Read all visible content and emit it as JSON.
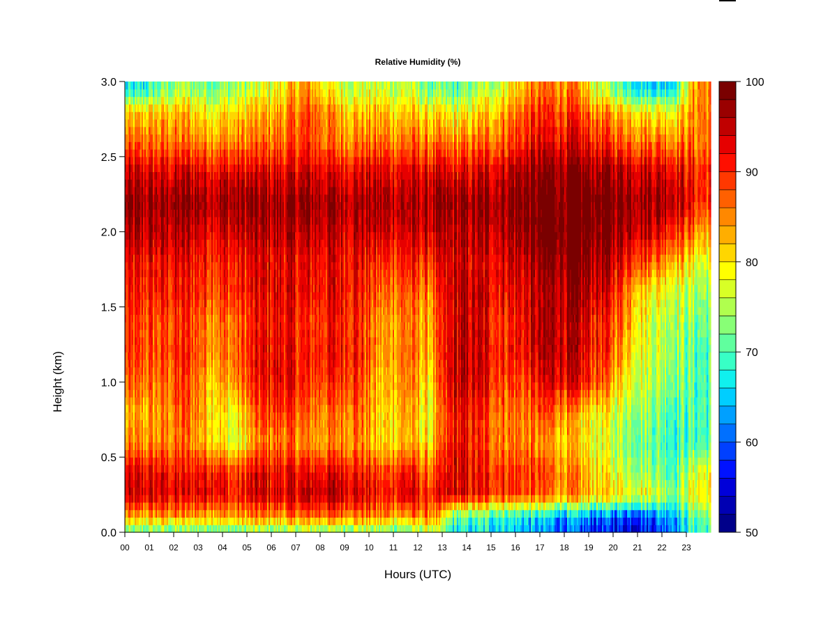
{
  "chart_data": {
    "type": "heatmap",
    "title": "Relative Humidity (%)",
    "xlabel": "Hours (UTC)",
    "ylabel": "Height (km)",
    "x_ticks": [
      "00",
      "01",
      "02",
      "03",
      "04",
      "05",
      "06",
      "07",
      "08",
      "09",
      "10",
      "11",
      "12",
      "13",
      "14",
      "15",
      "16",
      "17",
      "18",
      "19",
      "20",
      "21",
      "22",
      "23"
    ],
    "y_ticks": [
      "0.0",
      "0.5",
      "1.0",
      "1.5",
      "2.0",
      "2.5",
      "3.0"
    ],
    "xlim": [
      0,
      24
    ],
    "ylim": [
      0,
      3.0
    ],
    "colorbar": {
      "range": [
        50,
        100
      ],
      "step": 2,
      "tick_labels": [
        "50",
        "60",
        "70",
        "80",
        "90",
        "100"
      ],
      "colors": [
        "#00008a",
        "#0000b3",
        "#0000d9",
        "#0012ff",
        "#0040ff",
        "#0070ff",
        "#00a0ff",
        "#00ceff",
        "#10f0ee",
        "#38ffc6",
        "#60ff9e",
        "#88ff76",
        "#b0ff4e",
        "#d8ff26",
        "#ffff00",
        "#ffd600",
        "#ffae00",
        "#ff8800",
        "#ff6000",
        "#ff3800",
        "#ff0f00",
        "#e60000",
        "#c00000",
        "#9a0000",
        "#7a0000"
      ]
    },
    "levels_km": [
      0.03,
      0.1,
      0.25,
      0.4,
      0.6,
      0.8,
      1.0,
      1.2,
      1.4,
      1.6,
      1.8,
      2.0,
      2.2,
      2.4,
      2.6,
      2.8,
      2.95
    ],
    "rows": [
      {
        "h": 0,
        "v": [
          72,
          74,
          73,
          74,
          73,
          75,
          74,
          76,
          75,
          76,
          74,
          73,
          78,
          67,
          67,
          67,
          64,
          62,
          60,
          58,
          57,
          58,
          64,
          70
        ]
      },
      {
        "h": 1,
        "v": [
          82,
          84,
          83,
          84,
          83,
          85,
          84,
          86,
          86,
          86,
          84,
          83,
          86,
          70,
          70,
          69,
          66,
          64,
          62,
          60,
          59,
          60,
          65,
          72
        ]
      },
      {
        "h": 2,
        "v": [
          93,
          94,
          92,
          95,
          90,
          94,
          93,
          95,
          96,
          95,
          90,
          94,
          90,
          93,
          91,
          90,
          88,
          86,
          84,
          82,
          80,
          79,
          74,
          80
        ]
      },
      {
        "h": 3,
        "v": [
          92,
          92,
          91,
          93,
          89,
          93,
          92,
          92,
          93,
          92,
          88,
          92,
          86,
          94,
          91,
          90,
          89,
          87,
          84,
          80,
          76,
          74,
          71,
          78
        ]
      },
      {
        "h": 4,
        "v": [
          84,
          85,
          86,
          83,
          76,
          85,
          86,
          84,
          84,
          86,
          80,
          83,
          80,
          92,
          89,
          86,
          85,
          83,
          80,
          77,
          74,
          72,
          70,
          70
        ]
      },
      {
        "h": 5,
        "v": [
          82,
          84,
          88,
          82,
          78,
          88,
          90,
          86,
          86,
          88,
          80,
          84,
          78,
          92,
          90,
          87,
          86,
          88,
          82,
          79,
          76,
          74,
          71,
          70
        ]
      },
      {
        "h": 6,
        "v": [
          86,
          86,
          89,
          83,
          84,
          91,
          93,
          89,
          90,
          90,
          81,
          86,
          80,
          95,
          93,
          89,
          89,
          94,
          92,
          88,
          80,
          76,
          74,
          70
        ]
      },
      {
        "h": 7,
        "v": [
          88,
          88,
          90,
          86,
          86,
          92,
          93,
          90,
          92,
          92,
          83,
          87,
          82,
          95,
          94,
          91,
          92,
          96,
          94,
          90,
          84,
          77,
          75,
          70
        ]
      },
      {
        "h": 8,
        "v": [
          88,
          88,
          89,
          86,
          86,
          91,
          92,
          89,
          91,
          91,
          83,
          86,
          83,
          94,
          93,
          90,
          93,
          96,
          94,
          91,
          86,
          77,
          76,
          72
        ]
      },
      {
        "h": 9,
        "v": [
          90,
          91,
          91,
          90,
          89,
          92,
          93,
          91,
          93,
          92,
          86,
          88,
          85,
          95,
          94,
          93,
          93,
          96,
          96,
          94,
          88,
          80,
          78,
          74
        ]
      },
      {
        "h": 10,
        "v": [
          91,
          92,
          92,
          91,
          90,
          93,
          93,
          92,
          93,
          93,
          89,
          91,
          89,
          94,
          93,
          94,
          95,
          98,
          98,
          96,
          93,
          88,
          84,
          78
        ]
      },
      {
        "h": 11,
        "v": [
          95,
          95,
          95,
          94,
          94,
          95,
          95,
          95,
          95,
          95,
          94,
          94,
          94,
          95,
          95,
          96,
          98,
          100,
          100,
          99,
          97,
          95,
          92,
          84
        ]
      },
      {
        "h": 12,
        "v": [
          97,
          97,
          98,
          97,
          97,
          97,
          97,
          97,
          97,
          97,
          96,
          96,
          96,
          97,
          97,
          98,
          99,
          100,
          100,
          100,
          99,
          98,
          97,
          90
        ]
      },
      {
        "h": 13,
        "v": [
          93,
          93,
          94,
          93,
          93,
          93,
          93,
          94,
          93,
          93,
          93,
          93,
          93,
          92,
          93,
          95,
          97,
          98,
          98,
          97,
          96,
          95,
          94,
          90
        ]
      },
      {
        "h": 14,
        "v": [
          86,
          86,
          86,
          85,
          85,
          86,
          87,
          89,
          86,
          86,
          86,
          86,
          85,
          85,
          86,
          88,
          91,
          93,
          92,
          90,
          88,
          87,
          86,
          86
        ]
      },
      {
        "h": 15,
        "v": [
          80,
          82,
          82,
          80,
          80,
          82,
          84,
          88,
          84,
          82,
          82,
          82,
          80,
          78,
          80,
          84,
          88,
          90,
          88,
          85,
          82,
          80,
          80,
          86
        ]
      },
      {
        "h": 16,
        "v": [
          66,
          72,
          74,
          72,
          74,
          76,
          80,
          84,
          78,
          76,
          76,
          76,
          72,
          70,
          74,
          78,
          84,
          86,
          84,
          76,
          70,
          66,
          68,
          86
        ]
      }
    ]
  }
}
